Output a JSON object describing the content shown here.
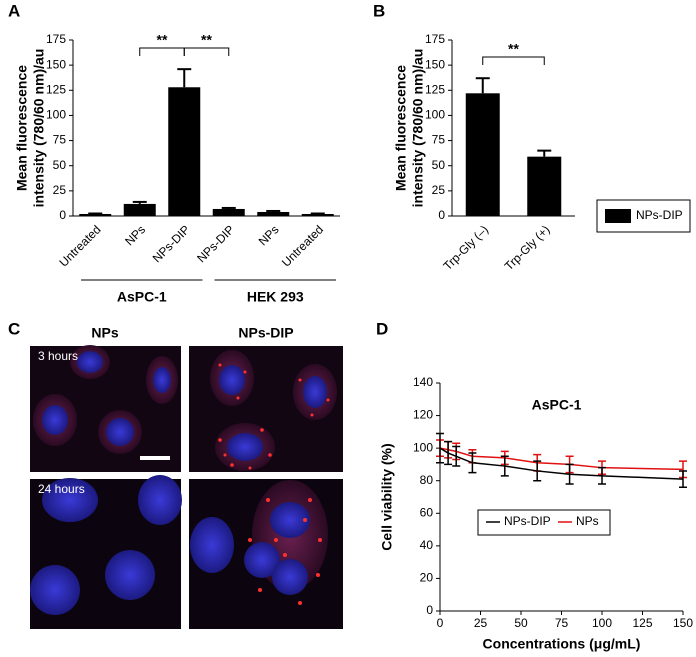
{
  "panel_labels": [
    "A",
    "B",
    "C",
    "D"
  ],
  "images": {
    "columns": [
      "NPs",
      "NPs-DIP"
    ],
    "rows": [
      "3 hours",
      "24 hours"
    ]
  },
  "chart_data": [
    {
      "type": "bar",
      "ylabel": [
        "Mean fluorescence",
        "intensity (780/60 nm)/au"
      ],
      "categories": [
        "Untreated",
        "NPs",
        "NPs-DIP",
        "NPs-DIP",
        "NPs",
        "Untreated"
      ],
      "values": [
        2,
        12,
        128,
        7,
        4,
        2
      ],
      "errors": [
        0.5,
        2,
        18,
        1,
        1,
        0.5
      ],
      "color": "#000000",
      "ylim": [
        0,
        175
      ],
      "yticks": [
        0,
        25,
        50,
        75,
        100,
        125,
        150,
        175
      ],
      "annotations": [
        "**",
        "**"
      ],
      "groups": [
        "AsPC-1",
        "HEK 293"
      ]
    },
    {
      "type": "bar",
      "ylabel": [
        "Mean fluorescence",
        "intensity (780/60 nm)/au"
      ],
      "categories": [
        "Trp-Gly (–)",
        "Trp-Gly (+)"
      ],
      "series": [
        {
          "name": "NPs-DIP",
          "color": "#000000",
          "values": [
            122,
            59
          ],
          "errors": [
            15,
            6
          ]
        }
      ],
      "ylim": [
        0,
        175
      ],
      "yticks": [
        0,
        25,
        50,
        75,
        100,
        125,
        150,
        175
      ],
      "annotations": [
        "**"
      ],
      "legend": "right"
    },
    {
      "type": "line",
      "title": "AsPC-1",
      "xlabel": "Concentrations (μg/mL)",
      "ylabel": "Cell viability (%)",
      "x": [
        0,
        5,
        10,
        20,
        40,
        60,
        80,
        100,
        150
      ],
      "series": [
        {
          "name": "NPs-DIP",
          "color": "#000000",
          "values": [
            100,
            97,
            95,
            91,
            89,
            86,
            84,
            83,
            81
          ],
          "errors": [
            9,
            7,
            6,
            6,
            6,
            6,
            6,
            5,
            5
          ]
        },
        {
          "name": "NPs",
          "color": "#e01010",
          "values": [
            100,
            99,
            98,
            95,
            94,
            91,
            90,
            88,
            87
          ],
          "errors": [
            5,
            5,
            5,
            4,
            4,
            5,
            5,
            4,
            5
          ]
        }
      ],
      "xlim": [
        0,
        150
      ],
      "xticks": [
        0,
        25,
        50,
        75,
        100,
        125,
        150
      ],
      "ylim": [
        0,
        140
      ],
      "yticks": [
        0,
        20,
        40,
        60,
        80,
        100,
        120,
        140
      ],
      "legend": "center"
    }
  ]
}
